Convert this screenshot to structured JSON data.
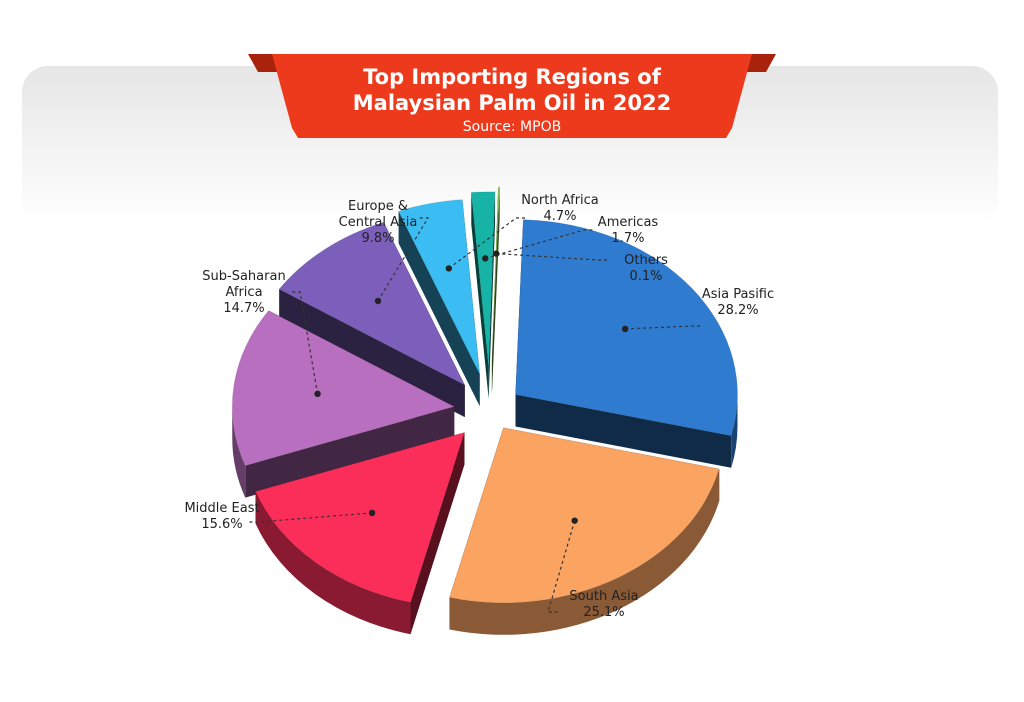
{
  "header": {
    "title_line1": "Top Importing Regions of",
    "title_line2": "Malaysian Palm Oil in 2022",
    "source": "Source: MPOB"
  },
  "colors": {
    "banner": "#ee3a1c",
    "banner_dark": "#a8220c"
  },
  "chart_data": {
    "type": "pie",
    "style": "3d-exploded",
    "title": "Top Importing Regions of Malaysian Palm Oil in 2022",
    "subtitle": "Source: MPOB",
    "unit": "%",
    "slices": [
      {
        "label": "Asia Pasific",
        "value": 28.2,
        "display": "28.2%",
        "color": "#2e7bcf"
      },
      {
        "label": "South Asia",
        "value": 25.1,
        "display": "25.1%",
        "color": "#fba462"
      },
      {
        "label": "Middle East",
        "value": 15.6,
        "display": "15.6%",
        "color": "#fb2e5a"
      },
      {
        "label": "Sub-Saharan Africa",
        "value": 14.7,
        "display": "14.7%",
        "color": "#b96fbf"
      },
      {
        "label": "Europe & Central Asia",
        "value": 9.8,
        "display": "9.8%",
        "color": "#7c5fba"
      },
      {
        "label": "North Africa",
        "value": 4.7,
        "display": "4.7%",
        "color": "#3bbdf3"
      },
      {
        "label": "Americas",
        "value": 1.7,
        "display": "1.7%",
        "color": "#17b3a6"
      },
      {
        "label": "Others",
        "value": 0.1,
        "display": "0.1%",
        "color": "#82c24a"
      }
    ]
  }
}
